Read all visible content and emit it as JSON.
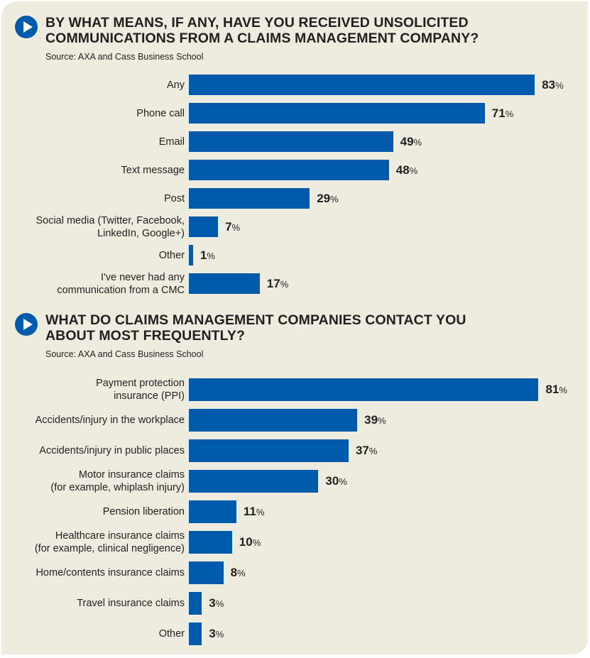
{
  "colors": {
    "background": "#eeebdf",
    "bar": "#005aab",
    "icon": "#005aab",
    "text": "#231f20"
  },
  "chart_data": [
    {
      "type": "bar",
      "orientation": "horizontal",
      "title": "BY WHAT MEANS, IF ANY, HAVE YOU RECEIVED UNSOLICITED\nCOMMUNICATIONS FROM A CLAIMS MANAGEMENT COMPANY?",
      "subtitle": "Source: AXA and Cass Business School",
      "icon": "play-icon",
      "unit": "%",
      "categories": [
        "Any",
        "Phone call",
        "Email",
        "Text message",
        "Post",
        "Social media (Twitter, Facebook,\nLinkedIn, Google+)",
        "Other",
        "I've never had any\ncommunication from a CMC"
      ],
      "values": [
        83,
        71,
        49,
        48,
        29,
        7,
        1,
        17
      ],
      "xlabel": "",
      "ylabel": "",
      "xlim": [
        0,
        100
      ],
      "grid": false
    },
    {
      "type": "bar",
      "orientation": "horizontal",
      "title": "WHAT DO CLAIMS MANAGEMENT COMPANIES CONTACT YOU\nABOUT MOST FREQUENTLY?",
      "subtitle": "Source: AXA and Cass Business School",
      "icon": "play-icon",
      "unit": "%",
      "categories": [
        "Payment protection\ninsurance (PPI)",
        "Accidents/injury in the workplace",
        "Accidents/injury in public places",
        "Motor insurance claims\n(for example, whiplash injury)",
        "Pension liberation",
        "Healthcare insurance claims\n(for example, clinical negligence)",
        "Home/contents insurance claims",
        "Travel insurance claims",
        "Other"
      ],
      "values": [
        81,
        39,
        37,
        30,
        11,
        10,
        8,
        3,
        3
      ],
      "xlabel": "",
      "ylabel": "",
      "xlim": [
        0,
        100
      ],
      "grid": false
    }
  ]
}
